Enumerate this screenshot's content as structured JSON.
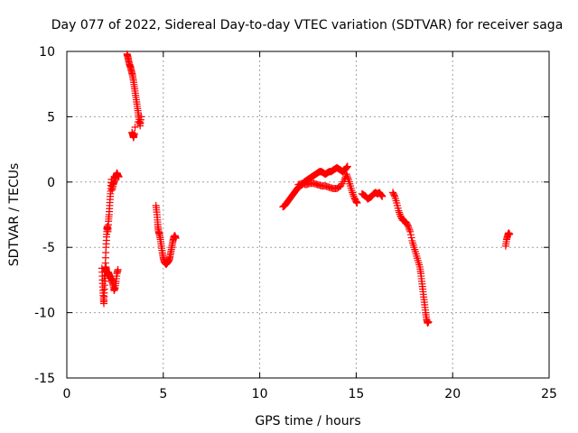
{
  "chart_data": {
    "type": "scatter",
    "title": "Day 077 of 2022, Sidereal Day-to-day VTEC variation (SDTVAR) for receiver saga",
    "xlabel": "GPS time / hours",
    "ylabel": "SDTVAR / TECUs",
    "xlim": [
      0,
      25
    ],
    "ylim": [
      -15,
      10
    ],
    "xticks": [
      0,
      5,
      10,
      15,
      20,
      25
    ],
    "yticks": [
      -15,
      -10,
      -5,
      0,
      5,
      10
    ],
    "xtick_labels": [
      "0",
      "5",
      "10",
      "15",
      "20",
      "25"
    ],
    "ytick_labels": [
      "-15",
      "-10",
      "-5",
      "0",
      "5",
      "10"
    ],
    "grid": true,
    "marker": "plus",
    "color": "#ff0000",
    "series": [
      {
        "name": "SDTVAR",
        "segments": [
          [
            [
              1.82,
              -6.6
            ],
            [
              1.85,
              -7.5
            ],
            [
              1.87,
              -8.3
            ],
            [
              1.9,
              -8.9
            ],
            [
              1.92,
              -9.3
            ],
            [
              1.94,
              -8.5
            ],
            [
              1.97,
              -7.6
            ],
            [
              2.0,
              -6.9
            ],
            [
              2.03,
              -6.5
            ],
            [
              2.06,
              -6.8
            ],
            [
              2.1,
              -7.0
            ],
            [
              2.15,
              -6.9
            ],
            [
              2.2,
              -7.1
            ],
            [
              2.25,
              -7.3
            ],
            [
              2.3,
              -7.4
            ],
            [
              2.35,
              -7.6
            ],
            [
              2.4,
              -7.9
            ],
            [
              2.45,
              -8.3
            ],
            [
              2.5,
              -8.1
            ],
            [
              2.55,
              -7.6
            ],
            [
              2.6,
              -7.0
            ],
            [
              2.65,
              -6.7
            ]
          ],
          [
            [
              1.95,
              -7.2
            ],
            [
              2.0,
              -6.2
            ],
            [
              2.03,
              -5.0
            ],
            [
              2.06,
              -4.2
            ],
            [
              2.08,
              -3.6
            ],
            [
              2.1,
              -3.4
            ],
            [
              2.13,
              -3.8
            ],
            [
              2.16,
              -3.0
            ],
            [
              2.19,
              -2.5
            ],
            [
              2.22,
              -1.8
            ],
            [
              2.25,
              -1.1
            ],
            [
              2.28,
              -0.5
            ],
            [
              2.31,
              0.2
            ],
            [
              2.35,
              -0.6
            ],
            [
              2.4,
              -0.2
            ],
            [
              2.45,
              0.0
            ],
            [
              2.5,
              0.3
            ],
            [
              2.55,
              0.5
            ],
            [
              2.6,
              0.7
            ],
            [
              2.65,
              0.5
            ],
            [
              2.7,
              0.4
            ]
          ],
          [
            [
              3.12,
              9.8
            ],
            [
              3.16,
              9.6
            ],
            [
              3.2,
              9.3
            ],
            [
              3.25,
              9.0
            ],
            [
              3.3,
              8.8
            ],
            [
              3.35,
              8.5
            ],
            [
              3.4,
              8.2
            ],
            [
              3.45,
              7.8
            ],
            [
              3.5,
              7.3
            ],
            [
              3.55,
              6.8
            ],
            [
              3.6,
              6.3
            ],
            [
              3.65,
              5.8
            ],
            [
              3.7,
              5.3
            ],
            [
              3.75,
              4.8
            ],
            [
              3.8,
              4.3
            ],
            [
              3.85,
              5.0
            ],
            [
              3.38,
              3.8
            ],
            [
              3.42,
              3.6
            ],
            [
              3.46,
              3.4
            ],
            [
              3.5,
              3.7
            ]
          ],
          [
            [
              4.62,
              -1.8
            ],
            [
              4.66,
              -2.3
            ],
            [
              4.7,
              -2.9
            ],
            [
              4.72,
              -3.4
            ],
            [
              4.76,
              -3.8
            ],
            [
              4.8,
              -4.0
            ],
            [
              4.85,
              -4.4
            ],
            [
              4.9,
              -4.9
            ],
            [
              4.95,
              -5.4
            ],
            [
              5.0,
              -5.8
            ],
            [
              5.05,
              -6.1
            ],
            [
              5.1,
              -6.2
            ],
            [
              5.15,
              -6.3
            ],
            [
              5.2,
              -6.2
            ],
            [
              5.25,
              -6.1
            ],
            [
              5.3,
              -6.0
            ],
            [
              5.35,
              -5.7
            ],
            [
              5.4,
              -5.3
            ],
            [
              5.45,
              -4.9
            ],
            [
              5.5,
              -4.5
            ],
            [
              5.55,
              -4.2
            ],
            [
              5.6,
              -4.1
            ],
            [
              5.65,
              -4.3
            ]
          ],
          [
            [
              11.2,
              -1.9
            ],
            [
              11.3,
              -1.8
            ],
            [
              11.4,
              -1.6
            ],
            [
              11.5,
              -1.4
            ],
            [
              11.6,
              -1.2
            ],
            [
              11.7,
              -1.0
            ],
            [
              11.8,
              -0.8
            ],
            [
              11.9,
              -0.6
            ],
            [
              12.0,
              -0.4
            ],
            [
              12.1,
              -0.3
            ],
            [
              12.2,
              -0.2
            ],
            [
              12.3,
              0.0
            ],
            [
              12.4,
              0.1
            ],
            [
              12.5,
              0.2
            ],
            [
              12.6,
              0.3
            ],
            [
              12.7,
              0.4
            ],
            [
              12.8,
              0.5
            ],
            [
              12.9,
              0.6
            ],
            [
              13.0,
              0.7
            ],
            [
              13.1,
              0.8
            ],
            [
              13.2,
              0.8
            ],
            [
              13.3,
              0.7
            ],
            [
              13.4,
              0.6
            ],
            [
              13.5,
              0.7
            ],
            [
              13.6,
              0.8
            ],
            [
              13.7,
              0.8
            ],
            [
              13.8,
              0.9
            ],
            [
              13.9,
              1.0
            ],
            [
              14.0,
              1.1
            ],
            [
              14.1,
              1.0
            ],
            [
              14.2,
              0.9
            ],
            [
              14.3,
              0.8
            ],
            [
              14.4,
              0.9
            ],
            [
              14.5,
              1.1
            ],
            [
              14.55,
              1.2
            ]
          ],
          [
            [
              12.0,
              -0.2
            ],
            [
              12.2,
              -0.1
            ],
            [
              12.4,
              -0.2
            ],
            [
              12.6,
              -0.1
            ],
            [
              12.8,
              -0.1
            ],
            [
              13.0,
              -0.2
            ],
            [
              13.2,
              -0.3
            ],
            [
              13.4,
              -0.3
            ],
            [
              13.6,
              -0.4
            ],
            [
              13.8,
              -0.5
            ],
            [
              14.0,
              -0.5
            ],
            [
              14.2,
              -0.3
            ],
            [
              14.4,
              0.2
            ],
            [
              14.5,
              0.6
            ],
            [
              14.6,
              0.2
            ],
            [
              14.7,
              -0.3
            ],
            [
              14.8,
              -0.8
            ],
            [
              14.9,
              -1.2
            ],
            [
              15.0,
              -1.5
            ],
            [
              15.05,
              -1.6
            ]
          ],
          [
            [
              15.3,
              -0.9
            ],
            [
              15.4,
              -1.0
            ],
            [
              15.5,
              -1.1
            ],
            [
              15.6,
              -1.3
            ],
            [
              15.7,
              -1.2
            ],
            [
              15.8,
              -1.1
            ],
            [
              15.9,
              -0.9
            ],
            [
              16.0,
              -0.8
            ],
            [
              16.1,
              -0.9
            ],
            [
              16.2,
              -0.8
            ],
            [
              16.3,
              -1.0
            ],
            [
              16.35,
              -1.1
            ]
          ],
          [
            [
              16.9,
              -0.8
            ],
            [
              17.0,
              -1.1
            ],
            [
              17.1,
              -1.6
            ],
            [
              17.2,
              -2.2
            ],
            [
              17.3,
              -2.6
            ],
            [
              17.4,
              -2.9
            ],
            [
              17.5,
              -3.0
            ],
            [
              17.6,
              -3.1
            ],
            [
              17.7,
              -3.4
            ],
            [
              17.8,
              -3.8
            ],
            [
              17.9,
              -4.5
            ],
            [
              18.0,
              -5.0
            ],
            [
              18.1,
              -5.5
            ],
            [
              18.2,
              -6.0
            ],
            [
              18.3,
              -6.5
            ],
            [
              18.35,
              -7.0
            ],
            [
              18.4,
              -7.6
            ],
            [
              18.45,
              -8.2
            ],
            [
              18.5,
              -8.8
            ],
            [
              18.55,
              -9.4
            ],
            [
              18.6,
              -10.0
            ],
            [
              18.65,
              -10.5
            ],
            [
              18.7,
              -10.8
            ],
            [
              18.75,
              -10.7
            ]
          ],
          [
            [
              22.75,
              -4.9
            ],
            [
              22.8,
              -4.4
            ],
            [
              22.85,
              -4.1
            ],
            [
              22.9,
              -3.9
            ],
            [
              22.95,
              -4.0
            ]
          ]
        ]
      }
    ]
  }
}
